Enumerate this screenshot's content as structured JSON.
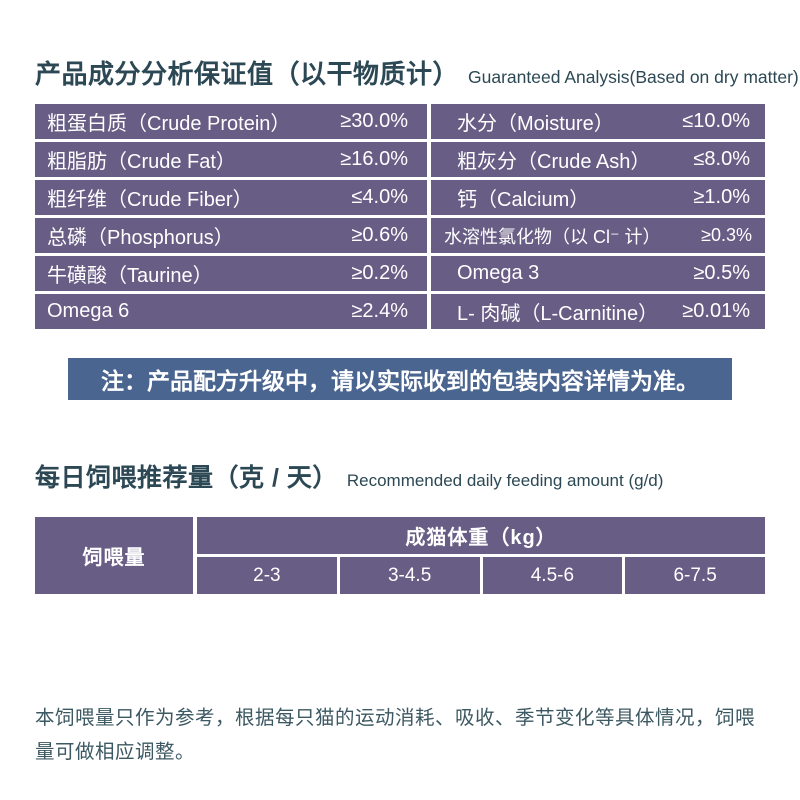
{
  "colors": {
    "table_purple": "#675d85",
    "notice_blue": "#4a6590",
    "heading_dark": "#2c4854",
    "footnote_text": "#3c5862",
    "table_text": "#ffffff",
    "page_background": "#ffffff"
  },
  "section1": {
    "title_cn": "产品成分分析保证值（以干物质计）",
    "title_en": "Guaranteed Analysis(Based on dry matter)",
    "table": {
      "left_rows": [
        {
          "label": "粗蛋白质（Crude Protein）",
          "value": "≥30.0%"
        },
        {
          "label": "粗脂肪（Crude Fat）",
          "value": "≥16.0%"
        },
        {
          "label": "粗纤维（Crude Fiber）",
          "value": "≤4.0%"
        },
        {
          "label": "总磷（Phosphorus）",
          "value": "≥0.6%"
        },
        {
          "label": "牛磺酸（Taurine）",
          "value": "≥0.2%"
        },
        {
          "label": "Omega 6",
          "value": "≥2.4%"
        }
      ],
      "right_rows": [
        {
          "label": "水分（Moisture）",
          "value": "≤10.0%"
        },
        {
          "label": "粗灰分（Crude Ash）",
          "value": "≤8.0%"
        },
        {
          "label": "钙（Calcium）",
          "value": "≥1.0%"
        },
        {
          "label": "水溶性氯化物（以 Cl⁻ 计）",
          "value": "≥0.3%"
        },
        {
          "label": "Omega 3",
          "value": "≥0.5%"
        },
        {
          "label": "L- 肉碱（L-Carnitine）",
          "value": "≥0.01%"
        }
      ]
    }
  },
  "notice": {
    "text": "注：产品配方升级中，请以实际收到的包装内容详情为准。"
  },
  "section2": {
    "title_cn": "每日饲喂推荐量（克 / 天）",
    "title_en": "Recommended daily feeding amount (g/d)",
    "table": {
      "row_header": "饲喂量",
      "col_group_header": "成猫体重（kg）",
      "weight_columns": [
        "2-3",
        "3-4.5",
        "4.5-6",
        "6-7.5"
      ]
    }
  },
  "footnote": {
    "text": "本饲喂量只作为参考，根据每只猫的运动消耗、吸收、季节变化等具体情况，饲喂量可做相应调整。"
  }
}
